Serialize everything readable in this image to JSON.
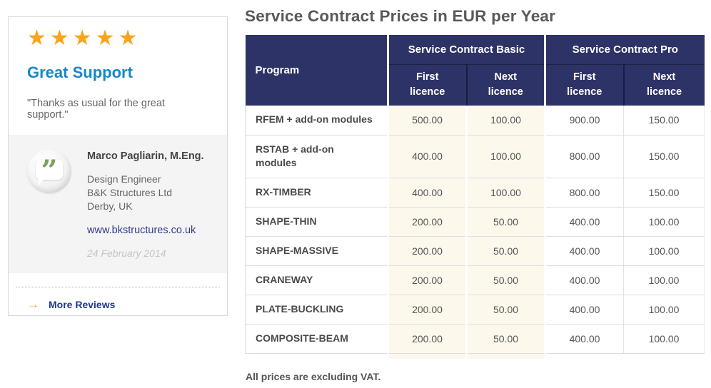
{
  "colors": {
    "header_navy": "#2e3367",
    "basic_column_cream": "#fdf8ec",
    "star_orange": "#f8a41d",
    "testimonial_title_blue": "#1687c9",
    "link_navy": "#2e3a8c",
    "quote_bubble_green": "#7ba257"
  },
  "testimonial_card": {
    "stars": "★★★★★",
    "title": "Great Support",
    "quote": "\"Thanks as usual for the great support.\"",
    "avatar_quote_glyph": "”",
    "author": {
      "name": "Marco Pagliarin, M.Eng.",
      "role": "Design Engineer",
      "company": "B&K Structures Ltd",
      "location": "Derby, UK",
      "website": "www.bkstructures.co.uk",
      "date": "24 February 2014"
    },
    "more_reviews": {
      "arrow": "→",
      "label": "More Reviews"
    }
  },
  "pricing": {
    "title": "Service Contract Prices in EUR per Year",
    "note": "All prices are excluding VAT.",
    "table": {
      "program_header": "Program",
      "groups": [
        {
          "label": "Service Contract Basic",
          "sub": [
            "First\nlicence",
            "Next\nlicence"
          ]
        },
        {
          "label": "Service Contract Pro",
          "sub": [
            "First\nlicence",
            "Next\nlicence"
          ]
        }
      ],
      "rows": [
        {
          "program": "RFEM + add-on modules",
          "prices": [
            "500.00",
            "100.00",
            "900.00",
            "150.00"
          ]
        },
        {
          "program": "RSTAB + add-on\nmodules",
          "prices": [
            "400.00",
            "100.00",
            "800.00",
            "150.00"
          ]
        },
        {
          "program": "RX-TIMBER",
          "prices": [
            "400.00",
            "100.00",
            "800.00",
            "150.00"
          ]
        },
        {
          "program": "SHAPE-THIN",
          "prices": [
            "200.00",
            "50.00",
            "400.00",
            "100.00"
          ]
        },
        {
          "program": "SHAPE-MASSIVE",
          "prices": [
            "200.00",
            "50.00",
            "400.00",
            "100.00"
          ]
        },
        {
          "program": "CRANEWAY",
          "prices": [
            "200.00",
            "50.00",
            "400.00",
            "100.00"
          ]
        },
        {
          "program": "PLATE-BUCKLING",
          "prices": [
            "200.00",
            "50.00",
            "400.00",
            "100.00"
          ]
        },
        {
          "program": "COMPOSITE-BEAM",
          "prices": [
            "200.00",
            "50.00",
            "400.00",
            "100.00"
          ]
        }
      ]
    }
  }
}
